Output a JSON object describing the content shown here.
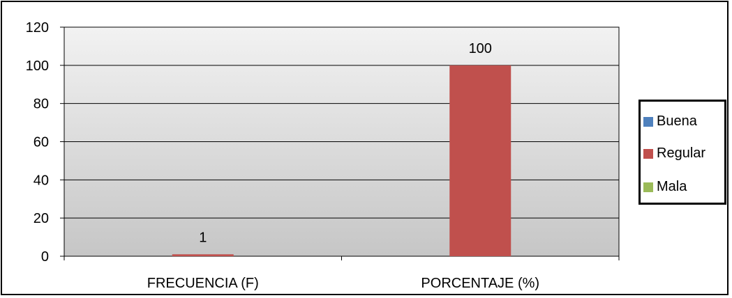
{
  "chart_data": {
    "type": "bar",
    "categories": [
      "FRECUENCIA (F)",
      "PORCENTAJE (%)"
    ],
    "series": [
      {
        "name": "Buena",
        "color": "#4f81bd",
        "values": [
          0,
          0
        ]
      },
      {
        "name": "Regular",
        "color": "#c0504d",
        "values": [
          1,
          100
        ]
      },
      {
        "name": "Mala",
        "color": "#9bbb59",
        "values": [
          0,
          0
        ]
      }
    ],
    "data_labels": [
      "1",
      "100"
    ],
    "yticks": [
      "0",
      "20",
      "40",
      "60",
      "80",
      "100",
      "120"
    ],
    "ylim": [
      0,
      120
    ],
    "grid": true,
    "legend_position": "right",
    "plot_background": "gradient-light-to-gray"
  }
}
